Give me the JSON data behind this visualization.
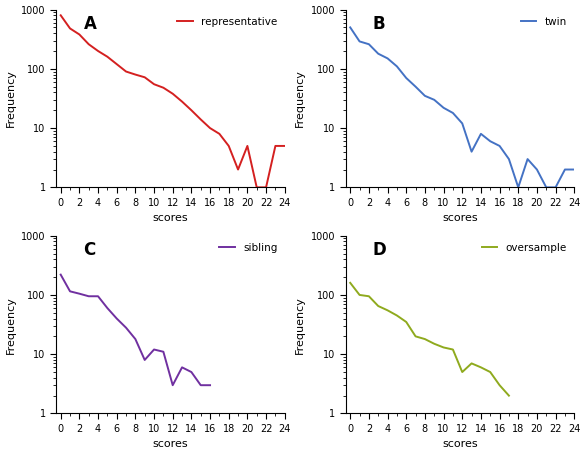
{
  "panel_A": {
    "label": "representative",
    "color": "#d42020",
    "scores": [
      0,
      1,
      2,
      3,
      4,
      5,
      6,
      7,
      8,
      9,
      10,
      11,
      12,
      13,
      14,
      15,
      16,
      17,
      18,
      19,
      20,
      21,
      22,
      23,
      24
    ],
    "freq": [
      800,
      480,
      380,
      260,
      200,
      160,
      120,
      90,
      80,
      72,
      55,
      48,
      38,
      28,
      20,
      14,
      10,
      8,
      5,
      2,
      5,
      1,
      1,
      5,
      5
    ]
  },
  "panel_B": {
    "label": "twin",
    "color": "#4472c4",
    "scores": [
      0,
      1,
      2,
      3,
      4,
      5,
      6,
      7,
      8,
      9,
      10,
      11,
      12,
      13,
      14,
      15,
      16,
      17,
      18,
      19,
      20,
      21,
      22,
      23,
      24
    ],
    "freq": [
      500,
      290,
      260,
      180,
      150,
      110,
      70,
      50,
      35,
      30,
      22,
      18,
      12,
      4,
      8,
      6,
      5,
      3,
      1,
      3,
      2,
      1,
      1,
      2,
      2
    ]
  },
  "panel_C": {
    "label": "sibling",
    "color": "#7030a0",
    "scores": [
      0,
      1,
      2,
      3,
      4,
      5,
      6,
      7,
      8,
      9,
      10,
      11,
      12,
      13,
      14,
      15,
      16
    ],
    "freq": [
      220,
      115,
      105,
      95,
      95,
      60,
      40,
      28,
      18,
      8,
      12,
      11,
      3,
      6,
      5,
      3,
      3
    ]
  },
  "panel_D": {
    "label": "oversample",
    "color": "#8faa1e",
    "scores": [
      0,
      1,
      2,
      3,
      4,
      5,
      6,
      7,
      8,
      9,
      10,
      11,
      12,
      13,
      14,
      15,
      16,
      17
    ],
    "freq": [
      160,
      100,
      95,
      65,
      55,
      45,
      35,
      20,
      18,
      15,
      13,
      12,
      5,
      7,
      6,
      5,
      3,
      2
    ]
  },
  "panel_labels": [
    "A",
    "B",
    "C",
    "D"
  ],
  "ylabel": "Frequency",
  "xlabel": "scores",
  "ylim": [
    1,
    1000
  ],
  "xlim": [
    -0.5,
    24
  ],
  "xticks": [
    0,
    2,
    4,
    6,
    8,
    10,
    12,
    14,
    16,
    18,
    20,
    22,
    24
  ],
  "yticks": [
    1,
    10,
    100,
    1000
  ]
}
